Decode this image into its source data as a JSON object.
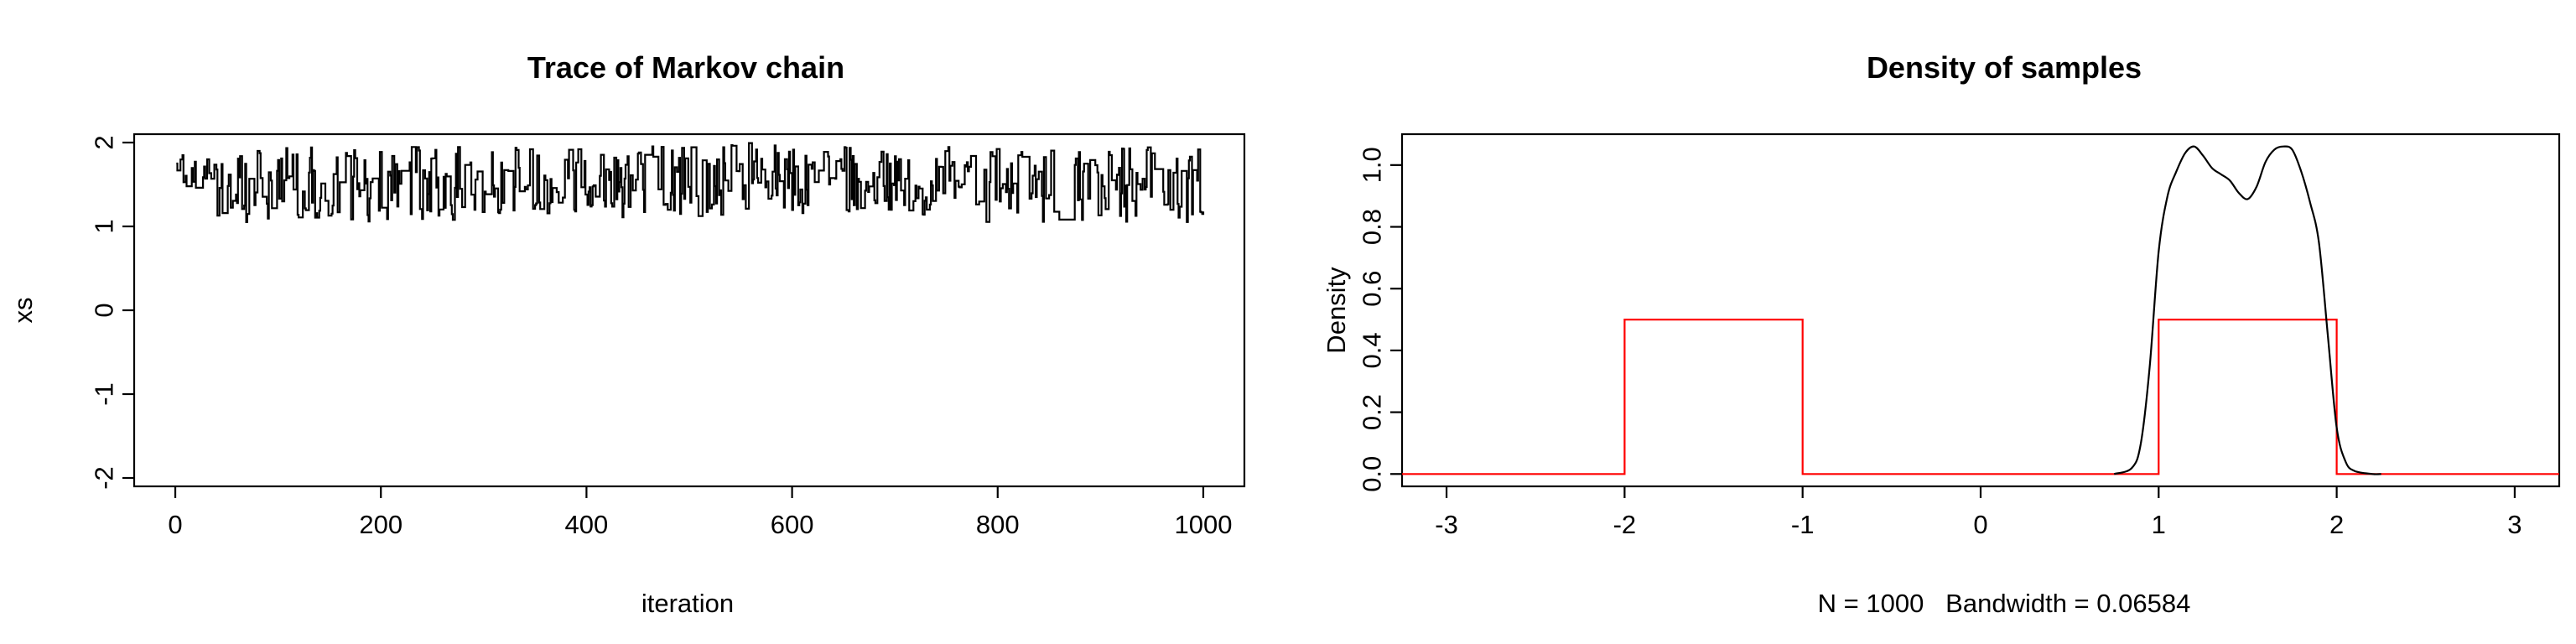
{
  "chart_data": [
    {
      "type": "line",
      "title": "Trace of Markov chain",
      "xlabel": "iteration",
      "ylabel": "xs",
      "xlim": [
        -40,
        1040
      ],
      "ylim": [
        -2.1,
        2.1
      ],
      "x_ticks": [
        0,
        200,
        400,
        600,
        800,
        1000
      ],
      "y_ticks": [
        -2,
        -1,
        0,
        1,
        2
      ],
      "grid": false,
      "legend": "none",
      "color": "#000000",
      "n": 1000,
      "value_range": [
        1.0,
        2.0
      ],
      "segments": [
        {
          "x": [
            0,
            40
          ],
          "lo": 1.45,
          "hi": 1.85
        },
        {
          "x": [
            40,
            190
          ],
          "lo": 1.05,
          "hi": 1.95
        },
        {
          "x": [
            190,
            300
          ],
          "lo": 1.05,
          "hi": 1.95
        },
        {
          "x": [
            300,
            420
          ],
          "lo": 1.15,
          "hi": 1.98
        },
        {
          "x": [
            420,
            600
          ],
          "lo": 1.1,
          "hi": 2.0
        },
        {
          "x": [
            600,
            720
          ],
          "lo": 1.15,
          "hi": 1.95
        },
        {
          "x": [
            720,
            950
          ],
          "lo": 1.05,
          "hi": 1.95
        },
        {
          "x": [
            950,
            1000
          ],
          "lo": 1.05,
          "hi": 1.95
        }
      ]
    },
    {
      "type": "line",
      "title": "Density of samples",
      "xlabel": "N = 1000   Bandwidth = 0.06584",
      "ylabel": "Density",
      "xlim": [
        -3.25,
        3.25
      ],
      "ylim": [
        -0.04,
        1.1
      ],
      "x_ticks": [
        -3,
        -2,
        -1,
        0,
        1,
        2,
        3
      ],
      "y_ticks": [
        0.0,
        0.2,
        0.4,
        0.6,
        0.8,
        1.0
      ],
      "y_tick_labels": [
        "0.0",
        "0.2",
        "0.4",
        "0.6",
        "0.8",
        "1.0"
      ],
      "grid": false,
      "legend": "none",
      "series": [
        {
          "color": "#000000",
          "x": [
            0.75,
            0.85,
            0.9,
            0.95,
            1.0,
            1.05,
            1.1,
            1.15,
            1.2,
            1.25,
            1.3,
            1.35,
            1.4,
            1.45,
            1.5,
            1.55,
            1.6,
            1.65,
            1.7,
            1.75,
            1.8,
            1.85,
            1.9,
            1.95,
            2.0,
            2.05,
            2.1,
            2.2,
            2.25
          ],
          "y": [
            0.0,
            0.02,
            0.1,
            0.35,
            0.72,
            0.9,
            0.98,
            1.04,
            1.06,
            1.03,
            0.99,
            0.97,
            0.95,
            0.91,
            0.89,
            0.93,
            1.01,
            1.05,
            1.06,
            1.05,
            0.98,
            0.88,
            0.75,
            0.45,
            0.15,
            0.04,
            0.01,
            0.0,
            0.0
          ]
        },
        {
          "color": "#ff0000",
          "x": [
            -3.25,
            -2,
            -2,
            -1,
            -1,
            1,
            1,
            2,
            2,
            3.25
          ],
          "y": [
            0,
            0,
            0.5,
            0.5,
            0,
            0,
            0.5,
            0.5,
            0,
            0
          ]
        }
      ]
    }
  ]
}
